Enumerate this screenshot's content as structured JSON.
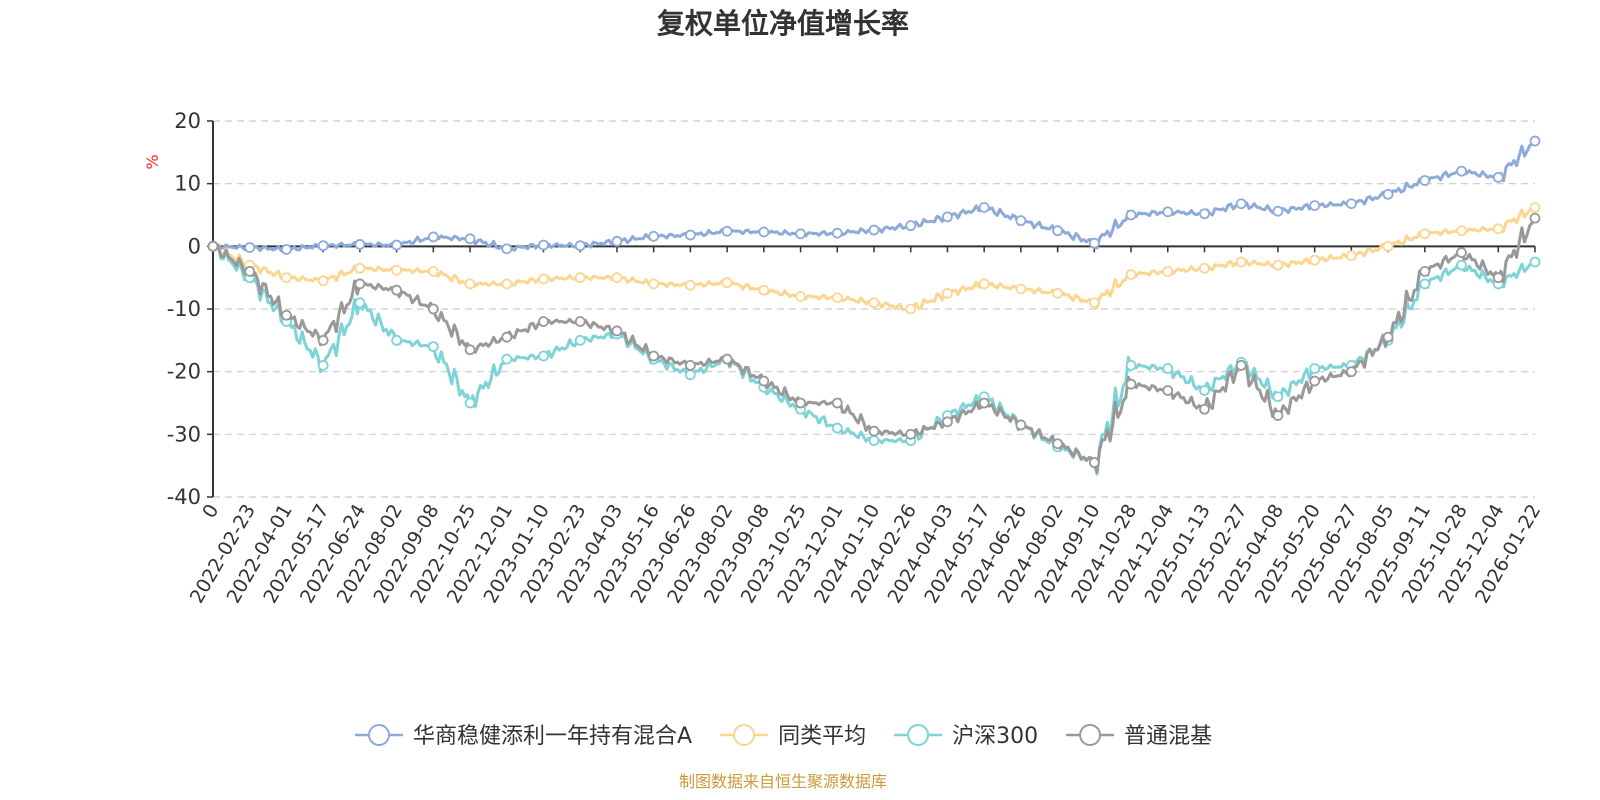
{
  "colors": {
    "fund": "#8eaad9",
    "peer_avg": "#fcd590",
    "hs300": "#7dd3d6",
    "mixed": "#999999",
    "unit": "#ff2020",
    "source": "#c99a3a",
    "grid": "#cccccc",
    "axis": "#333333"
  },
  "source_text": "制图数据来自恒生聚源数据库",
  "chart_data": {
    "type": "line",
    "title": "复权单位净值增长率",
    "ylabel": "%",
    "xlabel": "",
    "ylim": [
      -40,
      20
    ],
    "yticks": [
      20,
      10,
      0,
      -10,
      -20,
      -30,
      -40
    ],
    "grid": "horizontal dashed",
    "legend_position": "bottom-center",
    "categories": [
      "0",
      "2022-02-23",
      "2022-04-01",
      "2022-05-17",
      "2022-06-24",
      "2022-08-02",
      "2022-09-08",
      "2022-10-25",
      "2022-12-01",
      "2023-01-10",
      "2023-02-23",
      "2023-04-03",
      "2023-05-16",
      "2023-06-26",
      "2023-08-02",
      "2023-09-08",
      "2023-10-25",
      "2023-12-01",
      "2024-01-10",
      "2024-02-26",
      "2024-04-03",
      "2024-05-17",
      "2024-06-26",
      "2024-08-02",
      "2024-09-10",
      "2024-10-28",
      "2024-12-04",
      "2025-01-13",
      "2025-02-27",
      "2025-04-08",
      "2025-05-20",
      "2025-06-27",
      "2025-08-05",
      "2025-09-11",
      "2025-10-28",
      "2025-12-04",
      "2026-01-22"
    ],
    "series": [
      {
        "name": "华商稳健添利一年持有混合A",
        "color_key": "fund",
        "values": [
          0,
          -0.2,
          -0.5,
          0.1,
          0.3,
          0.2,
          1.5,
          1.2,
          -0.4,
          0.2,
          0.1,
          0.8,
          1.6,
          1.8,
          2.4,
          2.3,
          2.0,
          2.1,
          2.6,
          3.3,
          4.7,
          6.2,
          4.1,
          2.5,
          0.5,
          5.0,
          5.5,
          5.2,
          6.8,
          5.6,
          6.5,
          6.8,
          8.3,
          10.5,
          12.0,
          11.0,
          16.8
        ]
      },
      {
        "name": "同类平均",
        "color_key": "peer_avg",
        "values": [
          0,
          -3.0,
          -5.0,
          -5.5,
          -3.5,
          -3.8,
          -4.0,
          -6.0,
          -6.0,
          -5.2,
          -5.0,
          -5.0,
          -6.0,
          -6.2,
          -5.8,
          -7.0,
          -8.0,
          -8.2,
          -9.0,
          -10.0,
          -7.5,
          -6.0,
          -6.8,
          -7.5,
          -9.0,
          -4.5,
          -4.0,
          -3.5,
          -2.5,
          -3.0,
          -2.2,
          -1.5,
          0.0,
          2.0,
          2.5,
          2.8,
          6.2
        ]
      },
      {
        "name": "沪深300",
        "color_key": "hs300",
        "values": [
          0,
          -5.0,
          -12.0,
          -19.0,
          -9.0,
          -15.0,
          -16.0,
          -25.0,
          -18.0,
          -17.5,
          -15.0,
          -14.0,
          -18.0,
          -20.5,
          -18.0,
          -22.5,
          -26.0,
          -29.0,
          -31.0,
          -31.0,
          -27.0,
          -24.0,
          -28.5,
          -32.0,
          -34.5,
          -19.0,
          -19.5,
          -23.0,
          -18.5,
          -24.0,
          -19.5,
          -19.0,
          -15.0,
          -6.0,
          -3.0,
          -6.0,
          -2.5
        ]
      },
      {
        "name": "普通混基",
        "color_key": "mixed",
        "values": [
          0,
          -4.0,
          -11.0,
          -15.0,
          -6.0,
          -7.0,
          -10.0,
          -16.5,
          -14.5,
          -12.0,
          -12.0,
          -13.5,
          -17.5,
          -19.0,
          -18.0,
          -21.5,
          -25.0,
          -25.0,
          -29.5,
          -30.0,
          -28.0,
          -25.0,
          -28.5,
          -31.5,
          -34.5,
          -22.0,
          -23.0,
          -26.0,
          -19.0,
          -27.0,
          -21.5,
          -20.0,
          -14.5,
          -4.0,
          -1.0,
          -5.0,
          4.5
        ]
      }
    ]
  }
}
